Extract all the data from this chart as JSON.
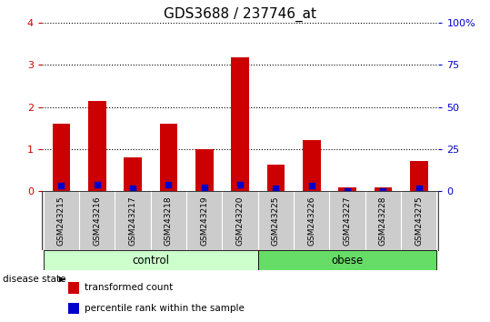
{
  "title": "GDS3688 / 237746_at",
  "samples": [
    "GSM243215",
    "GSM243216",
    "GSM243217",
    "GSM243218",
    "GSM243219",
    "GSM243220",
    "GSM243225",
    "GSM243226",
    "GSM243227",
    "GSM243228",
    "GSM243275"
  ],
  "transformed_count": [
    1.6,
    2.15,
    0.8,
    1.6,
    1.0,
    3.18,
    0.62,
    1.22,
    0.08,
    0.08,
    0.72
  ],
  "percentile_rank_scaled": [
    3.48,
    4.0,
    1.84,
    3.6,
    2.0,
    4.0,
    1.4,
    3.1,
    0.12,
    0.12,
    1.4
  ],
  "group": [
    "control",
    "control",
    "control",
    "control",
    "control",
    "control",
    "obese",
    "obese",
    "obese",
    "obese",
    "obese"
  ],
  "n_control": 6,
  "n_obese": 5,
  "bar_color": "#cc0000",
  "dot_color": "#0000cc",
  "ylim_left": [
    0,
    4
  ],
  "ylim_right": [
    0,
    100
  ],
  "yticks_left": [
    0,
    1,
    2,
    3,
    4
  ],
  "yticks_right": [
    0,
    25,
    50,
    75,
    100
  ],
  "yticklabels_left": [
    "0",
    "1",
    "2",
    "3",
    "4"
  ],
  "yticklabels_right": [
    "0",
    "25",
    "50",
    "75",
    "100%"
  ],
  "control_color": "#ccffcc",
  "obese_color": "#66dd66",
  "strip_color": "#cccccc",
  "bar_width": 0.5,
  "legend_label_red": "transformed count",
  "legend_label_blue": "percentile rank within the sample",
  "disease_state_label": "disease state"
}
